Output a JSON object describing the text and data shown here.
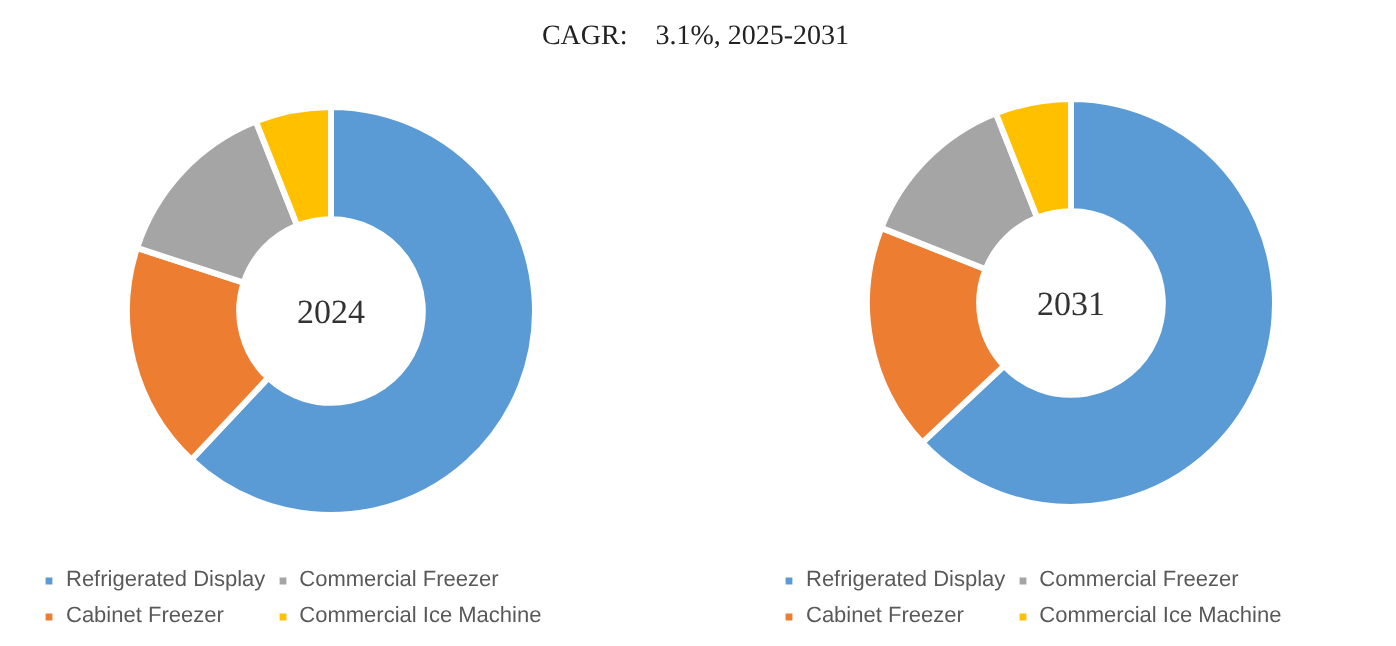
{
  "chart_data": [
    {
      "type": "donut",
      "subtitle": "CAGR:     3.1%, 2025-2031",
      "annotations": [
        "2024"
      ],
      "categories": [
        "Refrigerated Display",
        "Cabinet Freezer",
        "Commercial Freezer",
        "Commercial Ice Machine"
      ],
      "values": [
        62,
        18,
        14,
        6
      ],
      "colors": [
        "#5b9bd5",
        "#ed7d31",
        "#a5a5a5",
        "#ffc000"
      ],
      "legend": "bottom"
    },
    {
      "type": "donut",
      "annotations": [
        "2031"
      ],
      "categories": [
        "Refrigerated Display",
        "Cabinet Freezer",
        "Commercial Freezer",
        "Commercial Ice Machine"
      ],
      "values": [
        63,
        18,
        13,
        6
      ],
      "colors": [
        "#5b9bd5",
        "#ed7d31",
        "#a5a5a5",
        "#ffc000"
      ],
      "legend": "bottom"
    }
  ]
}
